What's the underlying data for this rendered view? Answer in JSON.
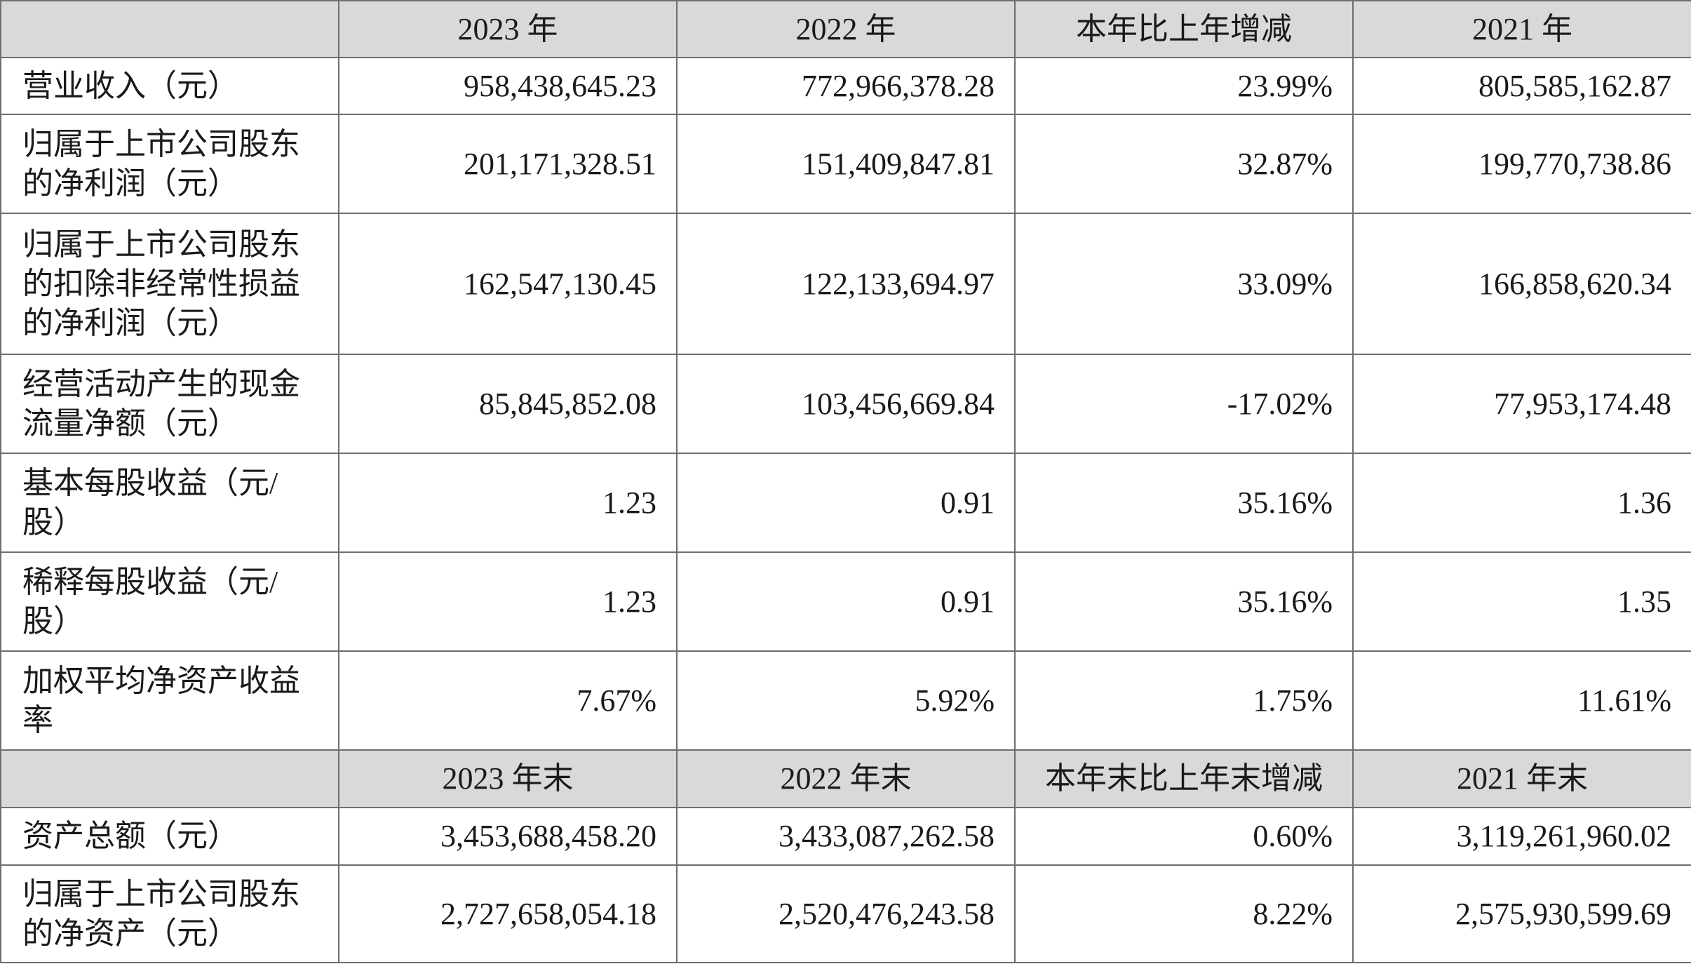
{
  "header1": [
    "",
    "2023 年",
    "2022 年",
    "本年比上年增减",
    "2021 年"
  ],
  "rows1": [
    {
      "label": [
        "营业收入（元）"
      ],
      "values": [
        "958,438,645.23",
        "772,966,378.28",
        "23.99%",
        "805,585,162.87"
      ]
    },
    {
      "label": [
        "归属于上市公司股东",
        "的净利润（元）"
      ],
      "values": [
        "201,171,328.51",
        "151,409,847.81",
        "32.87%",
        "199,770,738.86"
      ]
    },
    {
      "label": [
        "归属于上市公司股东",
        "的扣除非经常性损益",
        "的净利润（元）"
      ],
      "values": [
        "162,547,130.45",
        "122,133,694.97",
        "33.09%",
        "166,858,620.34"
      ]
    },
    {
      "label": [
        "经营活动产生的现金",
        "流量净额（元）"
      ],
      "values": [
        "85,845,852.08",
        "103,456,669.84",
        "-17.02%",
        "77,953,174.48"
      ]
    },
    {
      "label": [
        "基本每股收益（元/",
        "股）"
      ],
      "values": [
        "1.23",
        "0.91",
        "35.16%",
        "1.36"
      ]
    },
    {
      "label": [
        "稀释每股收益（元/",
        "股）"
      ],
      "values": [
        "1.23",
        "0.91",
        "35.16%",
        "1.35"
      ]
    },
    {
      "label": [
        "加权平均净资产收益",
        "率"
      ],
      "values": [
        "7.67%",
        "5.92%",
        "1.75%",
        "11.61%"
      ]
    }
  ],
  "header2": [
    "",
    "2023 年末",
    "2022 年末",
    "本年末比上年末增减",
    "2021 年末"
  ],
  "rows2": [
    {
      "label": [
        "资产总额（元）"
      ],
      "values": [
        "3,453,688,458.20",
        "3,433,087,262.58",
        "0.60%",
        "3,119,261,960.02"
      ]
    },
    {
      "label": [
        "归属于上市公司股东",
        "的净资产（元）"
      ],
      "values": [
        "2,727,658,054.18",
        "2,520,476,243.58",
        "8.22%",
        "2,575,930,599.69"
      ]
    }
  ]
}
